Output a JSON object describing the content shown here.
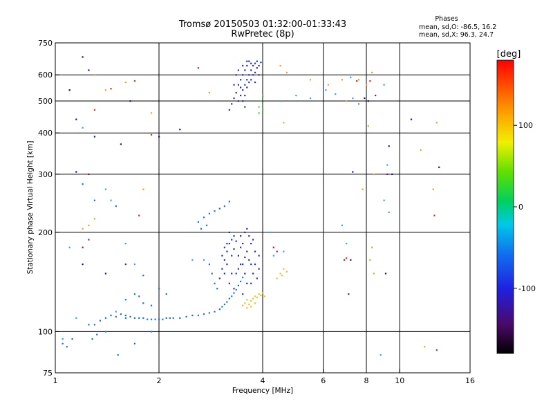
{
  "chart_data": {
    "type": "scatter",
    "title": "Tromsø 20150503 01:32:00-01:33:43",
    "subtitle": "RwPretec (8p)",
    "xlabel": "Frequency [MHz]",
    "ylabel": "Stationary phase Virtual Height [km]",
    "x_scale": "log2",
    "y_scale": "log",
    "xlim": [
      1,
      16
    ],
    "ylim": [
      75,
      750
    ],
    "x_ticks": [
      "1",
      "2",
      "4",
      "6",
      "8",
      "10",
      "16"
    ],
    "x_tick_values": [
      1,
      2,
      4,
      6,
      8,
      10,
      16
    ],
    "y_ticks": [
      "75",
      "100",
      "200",
      "300",
      "400",
      "500",
      "600",
      "750"
    ],
    "y_tick_values": [
      75,
      100,
      200,
      300,
      400,
      500,
      600,
      750
    ],
    "x_grid": [
      2,
      4,
      6,
      8,
      10
    ],
    "y_grid": [
      100,
      200,
      300,
      400,
      500,
      600
    ],
    "phases": {
      "heading": "Phases",
      "line1": "mean, sd,O:  -86.5, 16.2",
      "line2": "mean, sd,X:  96.3, 24.7"
    },
    "colorbar": {
      "unit": "[deg]",
      "range": [
        -180,
        180
      ],
      "ticks": [
        "100",
        "0",
        "-100"
      ],
      "tick_values": [
        100,
        0,
        -100
      ]
    },
    "series": [
      {
        "color": "#1e6be0",
        "points": [
          [
            1.05,
            92
          ],
          [
            1.08,
            90
          ],
          [
            1.12,
            95
          ],
          [
            1.3,
            105
          ],
          [
            1.35,
            108
          ],
          [
            1.4,
            110
          ],
          [
            1.45,
            112
          ],
          [
            1.5,
            111
          ],
          [
            1.55,
            113
          ],
          [
            1.6,
            112
          ],
          [
            1.65,
            111
          ],
          [
            1.7,
            110
          ],
          [
            1.75,
            110
          ],
          [
            1.8,
            110
          ],
          [
            1.85,
            109
          ],
          [
            1.9,
            109
          ],
          [
            1.95,
            109
          ],
          [
            2.0,
            109
          ],
          [
            2.05,
            109
          ],
          [
            2.1,
            110
          ],
          [
            2.15,
            110
          ],
          [
            2.2,
            110
          ],
          [
            2.3,
            110
          ],
          [
            2.4,
            111
          ],
          [
            2.5,
            112
          ],
          [
            2.6,
            112
          ],
          [
            2.7,
            113
          ],
          [
            2.8,
            114
          ],
          [
            2.9,
            115
          ],
          [
            3.0,
            117
          ],
          [
            3.05,
            119
          ],
          [
            3.1,
            121
          ],
          [
            3.15,
            123
          ],
          [
            3.2,
            126
          ],
          [
            3.25,
            128
          ],
          [
            3.3,
            131
          ],
          [
            3.35,
            134
          ],
          [
            3.4,
            138
          ],
          [
            3.45,
            142
          ],
          [
            3.5,
            146
          ],
          [
            1.6,
            125
          ],
          [
            1.7,
            130
          ],
          [
            1.75,
            128
          ],
          [
            2.0,
            135
          ],
          [
            2.1,
            130
          ],
          [
            1.8,
            122
          ],
          [
            1.9,
            120
          ],
          [
            1.28,
            95
          ],
          [
            1.32,
            98
          ],
          [
            1.52,
            85
          ],
          [
            1.7,
            92
          ],
          [
            1.9,
            100
          ],
          [
            2.6,
            215
          ],
          [
            2.7,
            222
          ],
          [
            2.8,
            228
          ],
          [
            2.9,
            232
          ],
          [
            3.0,
            236
          ],
          [
            3.1,
            240
          ],
          [
            2.75,
            210
          ],
          [
            2.65,
            205
          ],
          [
            3.2,
            248
          ],
          [
            2.8,
            160
          ],
          [
            2.85,
            150
          ],
          [
            2.9,
            140
          ],
          [
            2.95,
            135
          ],
          [
            1.3,
            250
          ],
          [
            1.2,
            280
          ],
          [
            1.25,
            105
          ],
          [
            1.5,
            240
          ],
          [
            1.4,
            100
          ],
          [
            1.6,
            110
          ],
          [
            1.8,
            148
          ]
        ]
      },
      {
        "color": "#1f2ed8",
        "points": [
          [
            3.0,
            145
          ],
          [
            3.05,
            155
          ],
          [
            3.1,
            165
          ],
          [
            3.15,
            175
          ],
          [
            3.2,
            185
          ],
          [
            3.25,
            190
          ],
          [
            3.3,
            195
          ],
          [
            3.1,
            150
          ],
          [
            3.2,
            140
          ],
          [
            3.3,
            135
          ],
          [
            3.4,
            170
          ],
          [
            3.45,
            180
          ],
          [
            3.5,
            160
          ],
          [
            3.55,
            150
          ],
          [
            3.6,
            175
          ],
          [
            3.65,
            165
          ],
          [
            3.7,
            185
          ],
          [
            3.75,
            190
          ],
          [
            3.8,
            160
          ],
          [
            3.85,
            145
          ],
          [
            3.9,
            155
          ],
          [
            3.45,
            195
          ],
          [
            3.55,
            200
          ],
          [
            3.6,
            205
          ],
          [
            3.15,
            160
          ],
          [
            3.25,
            170
          ],
          [
            3.35,
            150
          ],
          [
            3.5,
            185
          ],
          [
            3.7,
            140
          ],
          [
            3.8,
            175
          ],
          [
            3.2,
            200
          ],
          [
            3.65,
            195
          ],
          [
            3.4,
            155
          ],
          [
            3.3,
            178
          ],
          [
            3.6,
            140
          ],
          [
            3.75,
            150
          ],
          [
            3.05,
            170
          ],
          [
            3.5,
            130
          ],
          [
            3.9,
            170
          ],
          [
            3.35,
            188
          ],
          [
            3.25,
            150
          ],
          [
            3.55,
            168
          ],
          [
            3.15,
            185
          ],
          [
            3.45,
            160
          ],
          [
            3.7,
            160
          ],
          [
            3.1,
            180
          ],
          [
            3.4,
            500
          ],
          [
            3.45,
            520
          ],
          [
            3.5,
            540
          ],
          [
            3.55,
            560
          ],
          [
            3.6,
            580
          ],
          [
            3.65,
            600
          ],
          [
            3.7,
            620
          ],
          [
            3.75,
            640
          ],
          [
            3.8,
            650
          ],
          [
            3.85,
            660
          ],
          [
            3.5,
            600
          ],
          [
            3.55,
            620
          ],
          [
            3.6,
            640
          ],
          [
            3.65,
            660
          ],
          [
            3.4,
            560
          ],
          [
            3.45,
            580
          ],
          [
            3.3,
            510
          ],
          [
            3.35,
            530
          ],
          [
            3.25,
            490
          ],
          [
            3.2,
            470
          ],
          [
            3.6,
            550
          ],
          [
            3.7,
            580
          ],
          [
            3.8,
            610
          ],
          [
            3.9,
            640
          ],
          [
            3.95,
            655
          ],
          [
            3.5,
            500
          ],
          [
            3.55,
            520
          ],
          [
            3.75,
            600
          ],
          [
            3.85,
            630
          ],
          [
            3.45,
            550
          ],
          [
            3.65,
            570
          ],
          [
            3.4,
            620
          ],
          [
            3.6,
            660
          ],
          [
            3.35,
            600
          ],
          [
            3.7,
            650
          ],
          [
            3.9,
            600
          ],
          [
            3.55,
            480
          ],
          [
            3.3,
            560
          ],
          [
            3.5,
            640
          ],
          [
            3.8,
            570
          ]
        ]
      },
      {
        "color": "#e8c419",
        "points": [
          [
            3.5,
            120
          ],
          [
            3.55,
            122
          ],
          [
            3.6,
            118
          ],
          [
            3.65,
            121
          ],
          [
            3.7,
            124
          ],
          [
            3.75,
            126
          ],
          [
            3.8,
            128
          ],
          [
            3.85,
            127
          ],
          [
            3.9,
            130
          ],
          [
            3.95,
            129
          ],
          [
            4.0,
            131
          ],
          [
            4.05,
            128
          ],
          [
            3.6,
            125
          ],
          [
            3.7,
            119
          ],
          [
            3.8,
            122
          ],
          [
            4.4,
            145
          ],
          [
            4.5,
            150
          ],
          [
            4.6,
            155
          ],
          [
            4.55,
            148
          ],
          [
            4.7,
            152
          ]
        ]
      },
      {
        "color": "#35e030",
        "points": [
          [
            3.9,
            480
          ],
          [
            3.95,
            500
          ],
          [
            4.0,
            520
          ],
          [
            3.9,
            460
          ],
          [
            4.0,
            470
          ]
        ]
      },
      {
        "color": "#f5a020",
        "points": [
          [
            1.3,
            600
          ],
          [
            1.4,
            540
          ],
          [
            1.6,
            570
          ],
          [
            1.9,
            460
          ],
          [
            2.8,
            530
          ],
          [
            4.5,
            640
          ],
          [
            4.7,
            610
          ],
          [
            6.8,
            580
          ],
          [
            7.6,
            580
          ],
          [
            8.0,
            560
          ],
          [
            8.3,
            610
          ],
          [
            8.1,
            420
          ],
          [
            8.4,
            300
          ],
          [
            8.3,
            180
          ],
          [
            8.2,
            165
          ],
          [
            8.4,
            150
          ],
          [
            7.8,
            270
          ],
          [
            12.8,
            430
          ],
          [
            12.5,
            270
          ],
          [
            11.5,
            355
          ],
          [
            11.8,
            90
          ],
          [
            1.8,
            270
          ],
          [
            1.3,
            220
          ],
          [
            1.25,
            210
          ],
          [
            1.2,
            205
          ],
          [
            1.1,
            540
          ],
          [
            4.6,
            430
          ],
          [
            5.5,
            580
          ],
          [
            6.2,
            560
          ],
          [
            7.0,
            500
          ]
        ]
      },
      {
        "color": "#e02828",
        "points": [
          [
            1.45,
            545
          ],
          [
            1.7,
            575
          ],
          [
            1.9,
            395
          ],
          [
            7.5,
            575
          ],
          [
            8.2,
            575
          ],
          [
            12.8,
            88
          ],
          [
            12.6,
            225
          ],
          [
            7.0,
            167
          ],
          [
            1.75,
            225
          ],
          [
            2.6,
            630
          ],
          [
            1.3,
            470
          ]
        ]
      },
      {
        "color": "#3aa0f0",
        "points": [
          [
            1.1,
            180
          ],
          [
            1.05,
            95
          ],
          [
            1.15,
            110
          ],
          [
            1.2,
            415
          ],
          [
            1.4,
            270
          ],
          [
            1.5,
            115
          ],
          [
            1.7,
            160
          ],
          [
            2.5,
            165
          ],
          [
            2.7,
            165
          ],
          [
            4.5,
            500
          ],
          [
            5.0,
            520
          ],
          [
            5.5,
            510
          ],
          [
            6.1,
            540
          ],
          [
            6.5,
            525
          ],
          [
            7.6,
            490
          ],
          [
            7.2,
            590
          ],
          [
            7.3,
            510
          ],
          [
            9.0,
            560
          ],
          [
            9.2,
            320
          ],
          [
            9.3,
            230
          ],
          [
            8.8,
            85
          ],
          [
            9.0,
            250
          ],
          [
            7.0,
            185
          ],
          [
            6.8,
            210
          ],
          [
            1.6,
            185
          ],
          [
            1.45,
            250
          ],
          [
            4.2,
            200
          ],
          [
            4.3,
            170
          ],
          [
            4.6,
            175
          ]
        ]
      },
      {
        "color": "#16129a",
        "points": [
          [
            1.15,
            440
          ],
          [
            1.2,
            680
          ],
          [
            1.25,
            620
          ],
          [
            1.3,
            390
          ],
          [
            1.55,
            370
          ],
          [
            1.65,
            500
          ],
          [
            2.3,
            410
          ],
          [
            1.15,
            305
          ],
          [
            7.3,
            305
          ],
          [
            9.1,
            150
          ],
          [
            9.3,
            365
          ],
          [
            9.5,
            300
          ],
          [
            10.8,
            440
          ],
          [
            13.0,
            315
          ],
          [
            7.9,
            510
          ],
          [
            8.1,
            500
          ],
          [
            7.2,
            165
          ],
          [
            1.2,
            160
          ],
          [
            2.0,
            390
          ],
          [
            1.4,
            150
          ],
          [
            1.1,
            540
          ]
        ]
      },
      {
        "color": "#6a1a60",
        "points": [
          [
            1.25,
            300
          ],
          [
            1.2,
            180
          ],
          [
            1.6,
            160
          ],
          [
            7.1,
            130
          ],
          [
            8.5,
            520
          ],
          [
            9.2,
            300
          ]
        ]
      },
      {
        "color": "#aa1060",
        "points": [
          [
            4.3,
            180
          ],
          [
            4.4,
            175
          ],
          [
            6.9,
            165
          ],
          [
            1.25,
            190
          ]
        ]
      }
    ]
  }
}
